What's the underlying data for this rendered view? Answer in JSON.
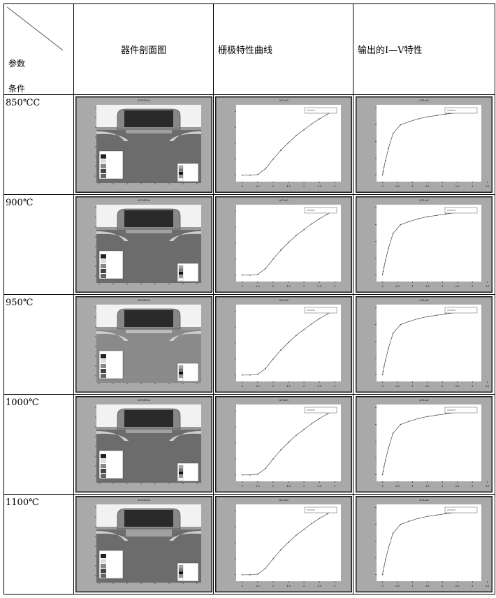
{
  "header": {
    "corner_top": "参数",
    "corner_bottom": "条件",
    "col1": "器件剖面图",
    "col2": "栅极特性曲线",
    "col3": "输出的I—V特性"
  },
  "rows": [
    {
      "condition": "850℃C",
      "variant": "a"
    },
    {
      "condition": "900℃",
      "variant": "a"
    },
    {
      "condition": "950℃",
      "variant": "b"
    },
    {
      "condition": "1000℃",
      "variant": "a"
    },
    {
      "condition": "1100℃",
      "variant": "c"
    }
  ],
  "figure_titles": {
    "profile": "ATHENA",
    "gate": "ATLAS",
    "iv": "ATLAS"
  },
  "colors": {
    "frame": "#a9a9a9",
    "border": "#1a1a1a",
    "gate_fill": "#2a2a2a",
    "oxide": "#7a7a7a",
    "substrate": "#6e6e6e",
    "plot_bg": "#ffffff"
  },
  "chart_data": [
    {
      "type": "line",
      "x": [
        0,
        0.25,
        0.5,
        0.75,
        1,
        1.25,
        1.5,
        1.75,
        2,
        2.25,
        2.5,
        2.75,
        3
      ],
      "values": [
        0,
        0,
        0.01,
        0.1,
        0.25,
        0.39,
        0.51,
        0.62,
        0.71,
        0.8,
        0.88,
        0.95,
        1.02
      ],
      "xlim": [
        -0.2,
        3.2
      ],
      "ylim": [
        -0.1,
        1.1
      ],
      "xticks": [
        "0",
        "0.5",
        "1",
        "1.5",
        "2",
        "2.5",
        "3"
      ]
    },
    {
      "type": "line",
      "x": [
        0,
        0.02,
        0.05,
        0.1,
        0.2,
        0.35,
        0.6,
        0.9,
        1.2,
        1.5,
        1.8,
        2.1,
        2.4,
        2.7,
        3
      ],
      "values": [
        0,
        0.05,
        0.12,
        0.22,
        0.4,
        0.62,
        0.75,
        0.8,
        0.84,
        0.87,
        0.89,
        0.91,
        0.93,
        0.95,
        0.97
      ],
      "xlim": [
        -0.2,
        3.3
      ],
      "ylim": [
        -0.1,
        1.05
      ],
      "xticks": [
        "0",
        "0.5",
        "1",
        "1.5",
        "2",
        "2.5",
        "3",
        "3.5"
      ]
    }
  ]
}
